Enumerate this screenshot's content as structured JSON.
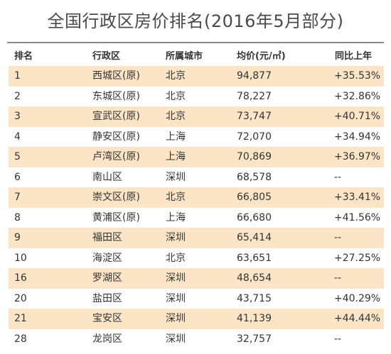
{
  "title": "全国行政区房价排名(2016年5月部分)",
  "columns": {
    "rank": "排名",
    "district": "行政区",
    "city": "所属城市",
    "price": "均价(元/㎡)",
    "yoy": "同比上年"
  },
  "colors": {
    "row_shade": "#fbe5c6",
    "divider": "#8a8a8a",
    "text": "#333333"
  },
  "rows": [
    {
      "rank": "1",
      "district": "西城区(原)",
      "city": "北京",
      "price": "94,877",
      "yoy": "+35.53%"
    },
    {
      "rank": "2",
      "district": "东城区(原)",
      "city": "北京",
      "price": "78,227",
      "yoy": "+32.86%"
    },
    {
      "rank": "3",
      "district": "宣武区(原)",
      "city": "北京",
      "price": "73,747",
      "yoy": "+40.71%"
    },
    {
      "rank": "4",
      "district": "静安区(原)",
      "city": "上海",
      "price": "72,070",
      "yoy": "+34.94%"
    },
    {
      "rank": "5",
      "district": "卢湾区(原)",
      "city": "上海",
      "price": "70,869",
      "yoy": "+36.97%"
    },
    {
      "rank": "6",
      "district": "南山区",
      "city": "深圳",
      "price": "68,578",
      "yoy": "--"
    },
    {
      "rank": "7",
      "district": "崇文区(原)",
      "city": "北京",
      "price": "66,805",
      "yoy": "+33.41%"
    },
    {
      "rank": "8",
      "district": "黄浦区(原)",
      "city": "上海",
      "price": "66,680",
      "yoy": "+41.56%"
    },
    {
      "rank": "9",
      "district": "福田区",
      "city": "深圳",
      "price": "65,414",
      "yoy": "--"
    },
    {
      "rank": "10",
      "district": "海淀区",
      "city": "北京",
      "price": "63,651",
      "yoy": "+27.25%"
    },
    {
      "rank": "16",
      "district": "罗湖区",
      "city": "深圳",
      "price": "48,654",
      "yoy": "--"
    },
    {
      "rank": "20",
      "district": "盐田区",
      "city": "深圳",
      "price": "43,715",
      "yoy": "+40.29%"
    },
    {
      "rank": "21",
      "district": "宝安区",
      "city": "深圳",
      "price": "41,139",
      "yoy": "+44.44%"
    },
    {
      "rank": "28",
      "district": "龙岗区",
      "city": "深圳",
      "price": "32,757",
      "yoy": "--"
    }
  ]
}
